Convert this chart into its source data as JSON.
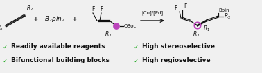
{
  "bg_color": "#f0f0f0",
  "check_color": "#22aa22",
  "text_color": "#111111",
  "bullet_items_left": [
    "Readily available reagents",
    "Bifunctional building blocks"
  ],
  "bullet_items_right": [
    "High stereoselective",
    "High regioselective"
  ],
  "magenta": "#bb44bb",
  "arrow_color": "#111111",
  "font_size_chem": 6.5,
  "font_size_sub": 4.5,
  "font_size_bullet": 6.5,
  "font_size_label": 5.5
}
